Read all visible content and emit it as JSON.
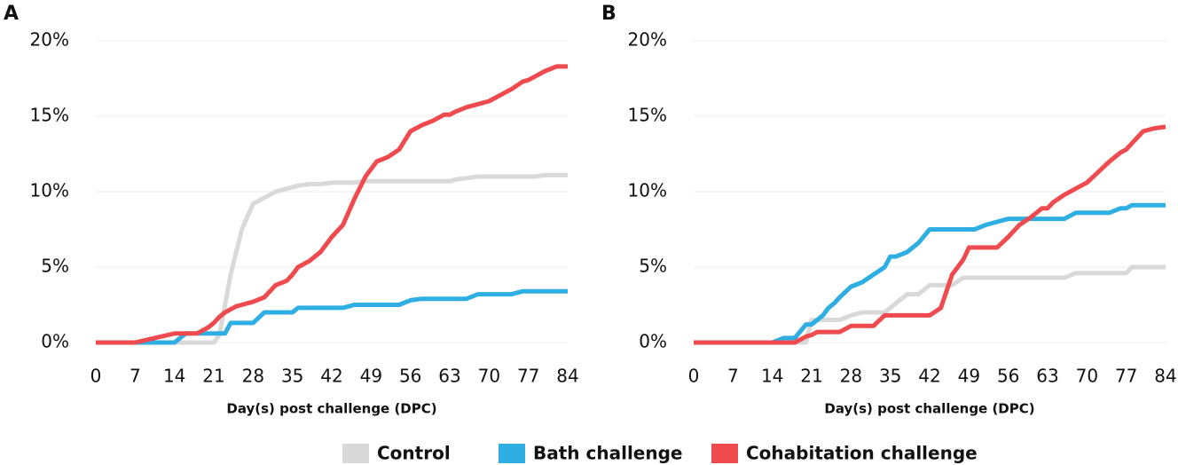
{
  "chart_data": [
    {
      "type": "line",
      "label": "A",
      "xlabel": "Day(s) post challenge (DPC)",
      "x": [
        0,
        7,
        14,
        16,
        18,
        20,
        21,
        22,
        23,
        24,
        25,
        26,
        28,
        30,
        32,
        34,
        35,
        36,
        38,
        40,
        42,
        44,
        46,
        48,
        49,
        50,
        52,
        54,
        56,
        58,
        60,
        62,
        63,
        64,
        66,
        68,
        70,
        72,
        74,
        76,
        77,
        78,
        80,
        82,
        84
      ],
      "xlim": [
        0,
        84
      ],
      "xticks": [
        0,
        7,
        14,
        21,
        28,
        35,
        42,
        49,
        56,
        63,
        70,
        77,
        84
      ],
      "ylim": [
        0,
        20
      ],
      "yticks": [
        {
          "value": 0,
          "label": "0%"
        },
        {
          "value": 5,
          "label": "5%"
        },
        {
          "value": 10,
          "label": "10%"
        },
        {
          "value": 15,
          "label": "15%"
        },
        {
          "value": 20,
          "label": "20%"
        }
      ],
      "grid": true,
      "series": [
        {
          "name": "Control",
          "color": "#d9d9d9",
          "values": [
            0,
            0,
            0,
            0,
            0,
            0,
            0,
            0.5,
            2.5,
            4.5,
            6,
            7.5,
            9.2,
            9.6,
            10,
            10.2,
            10.3,
            10.4,
            10.5,
            10.5,
            10.6,
            10.6,
            10.6,
            10.7,
            10.7,
            10.7,
            10.7,
            10.7,
            10.7,
            10.7,
            10.7,
            10.7,
            10.7,
            10.8,
            10.9,
            11,
            11,
            11,
            11,
            11,
            11,
            11,
            11.1,
            11.1,
            11.1
          ]
        },
        {
          "name": "Bath challenge",
          "color": "#2eaee3",
          "values": [
            0,
            0,
            0,
            0.6,
            0.6,
            0.6,
            0.6,
            0.6,
            0.6,
            1.3,
            1.3,
            1.3,
            1.3,
            2,
            2,
            2,
            2,
            2.3,
            2.3,
            2.3,
            2.3,
            2.3,
            2.5,
            2.5,
            2.5,
            2.5,
            2.5,
            2.5,
            2.8,
            2.9,
            2.9,
            2.9,
            2.9,
            2.9,
            2.9,
            3.2,
            3.2,
            3.2,
            3.2,
            3.4,
            3.4,
            3.4,
            3.4,
            3.4,
            3.4
          ]
        },
        {
          "name": "Cohabitation challenge",
          "color": "#ef4b4f",
          "values": [
            0,
            0,
            0.6,
            0.6,
            0.6,
            1.0,
            1.3,
            1.7,
            2.0,
            2.2,
            2.4,
            2.5,
            2.7,
            3.0,
            3.8,
            4.1,
            4.5,
            5.0,
            5.4,
            6.0,
            7.0,
            7.8,
            9.5,
            11.0,
            11.5,
            12.0,
            12.3,
            12.8,
            14.0,
            14.4,
            14.7,
            15.1,
            15.1,
            15.3,
            15.6,
            15.8,
            16.0,
            16.4,
            16.8,
            17.3,
            17.4,
            17.6,
            18.0,
            18.3,
            18.3
          ]
        }
      ]
    },
    {
      "type": "line",
      "label": "B",
      "xlabel": "Day(s) post challenge (DPC)",
      "x": [
        0,
        7,
        14,
        16,
        18,
        20,
        21,
        22,
        23,
        24,
        25,
        26,
        28,
        30,
        32,
        34,
        35,
        36,
        38,
        40,
        42,
        44,
        46,
        48,
        49,
        50,
        52,
        54,
        56,
        58,
        60,
        62,
        63,
        64,
        66,
        68,
        70,
        72,
        74,
        76,
        77,
        78,
        80,
        82,
        84
      ],
      "xlim": [
        0,
        84
      ],
      "xticks": [
        0,
        7,
        14,
        21,
        28,
        35,
        42,
        49,
        56,
        63,
        70,
        77,
        84
      ],
      "ylim": [
        0,
        20
      ],
      "yticks": [
        {
          "value": 0,
          "label": "0%"
        },
        {
          "value": 5,
          "label": "5%"
        },
        {
          "value": 10,
          "label": "10%"
        },
        {
          "value": 15,
          "label": "15%"
        },
        {
          "value": 20,
          "label": "20%"
        }
      ],
      "grid": true,
      "series": [
        {
          "color": "#d9d9d9",
          "values": [
            0,
            0,
            0,
            0,
            0,
            0,
            1.5,
            1.5,
            1.5,
            1.5,
            1.5,
            1.5,
            1.8,
            2,
            2,
            2,
            2.3,
            2.6,
            3.2,
            3.2,
            3.8,
            3.8,
            3.8,
            4.3,
            4.3,
            4.3,
            4.3,
            4.3,
            4.3,
            4.3,
            4.3,
            4.3,
            4.3,
            4.3,
            4.3,
            4.6,
            4.6,
            4.6,
            4.6,
            4.6,
            4.6,
            5.0,
            5.0,
            5.0,
            5.0
          ]
        },
        {
          "color": "#2eaee3",
          "values": [
            0,
            0,
            0,
            0.3,
            0.3,
            1.2,
            1.2,
            1.5,
            1.8,
            2.3,
            2.6,
            3.0,
            3.7,
            4.0,
            4.5,
            5.0,
            5.7,
            5.7,
            6.0,
            6.6,
            7.5,
            7.5,
            7.5,
            7.5,
            7.5,
            7.5,
            7.8,
            8.0,
            8.2,
            8.2,
            8.2,
            8.2,
            8.2,
            8.2,
            8.2,
            8.6,
            8.6,
            8.6,
            8.6,
            8.9,
            8.9,
            9.1,
            9.1,
            9.1,
            9.1
          ]
        },
        {
          "color": "#ef4b4f",
          "values": [
            0,
            0,
            0,
            0,
            0,
            0.4,
            0.5,
            0.7,
            0.7,
            0.7,
            0.7,
            0.7,
            1.1,
            1.1,
            1.1,
            1.8,
            1.8,
            1.8,
            1.8,
            1.8,
            1.8,
            2.3,
            4.5,
            5.5,
            6.3,
            6.3,
            6.3,
            6.3,
            7.0,
            7.8,
            8.3,
            8.9,
            8.9,
            9.3,
            9.8,
            10.2,
            10.6,
            11.3,
            12.0,
            12.6,
            12.8,
            13.2,
            14.0,
            14.2,
            14.3
          ]
        }
      ]
    }
  ]
}
